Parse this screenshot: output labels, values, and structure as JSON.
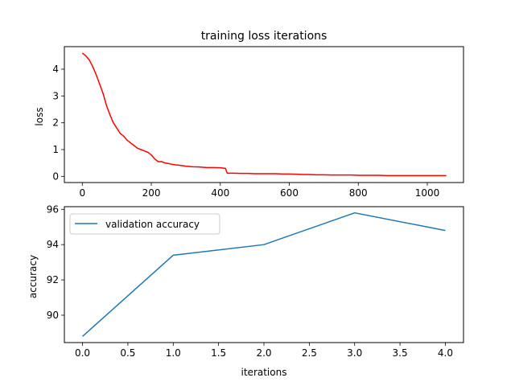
{
  "chart_data": [
    {
      "type": "line",
      "title": "training loss iterations",
      "xlabel": "",
      "ylabel": "loss",
      "xlim": [
        -52,
        1105
      ],
      "ylim": [
        -0.23,
        4.84
      ],
      "xticks": [
        0,
        200,
        400,
        600,
        800,
        1000
      ],
      "xtick_labels": [
        "0",
        "200",
        "400",
        "600",
        "800",
        "1000"
      ],
      "yticks": [
        0,
        1,
        2,
        3,
        4
      ],
      "ytick_labels": [
        "0",
        "1",
        "2",
        "3",
        "4"
      ],
      "grid": false,
      "series": [
        {
          "color": "#ff0000",
          "x": [
            0,
            10,
            20,
            30,
            40,
            50,
            60,
            70,
            80,
            90,
            100,
            110,
            120,
            130,
            140,
            150,
            160,
            170,
            180,
            190,
            200,
            210,
            220,
            230,
            240,
            250,
            260,
            270,
            280,
            290,
            300,
            320,
            340,
            360,
            380,
            400,
            415,
            420,
            440,
            460,
            480,
            500,
            520,
            540,
            560,
            580,
            600,
            620,
            640,
            660,
            680,
            700,
            720,
            740,
            760,
            780,
            800,
            820,
            840,
            860,
            880,
            900,
            920,
            940,
            960,
            980,
            1000,
            1020,
            1040,
            1055
          ],
          "y": [
            4.6,
            4.5,
            4.35,
            4.1,
            3.8,
            3.45,
            3.1,
            2.65,
            2.3,
            2.0,
            1.8,
            1.6,
            1.5,
            1.35,
            1.25,
            1.15,
            1.05,
            1.0,
            0.95,
            0.9,
            0.8,
            0.65,
            0.55,
            0.55,
            0.5,
            0.48,
            0.45,
            0.43,
            0.42,
            0.4,
            0.38,
            0.36,
            0.35,
            0.33,
            0.33,
            0.32,
            0.3,
            0.12,
            0.12,
            0.11,
            0.11,
            0.1,
            0.1,
            0.1,
            0.1,
            0.09,
            0.09,
            0.08,
            0.07,
            0.07,
            0.06,
            0.06,
            0.05,
            0.05,
            0.05,
            0.05,
            0.04,
            0.04,
            0.04,
            0.04,
            0.03,
            0.03,
            0.03,
            0.03,
            0.03,
            0.03,
            0.03,
            0.03,
            0.03,
            0.03
          ]
        }
      ]
    },
    {
      "type": "line",
      "title": "",
      "xlabel": "iterations",
      "ylabel": "accuracy",
      "xlim": [
        -0.2,
        4.2
      ],
      "ylim": [
        88.45,
        96.15
      ],
      "xticks": [
        0,
        0.5,
        1,
        1.5,
        2,
        2.5,
        3,
        3.5,
        4
      ],
      "xtick_labels": [
        "0.0",
        "0.5",
        "1.0",
        "1.5",
        "2.0",
        "2.5",
        "3.0",
        "3.5",
        "4.0"
      ],
      "yticks": [
        90,
        92,
        94,
        96
      ],
      "ytick_labels": [
        "90",
        "92",
        "94",
        "96"
      ],
      "grid": false,
      "legend": "top-left",
      "series": [
        {
          "name": "validation accuracy",
          "color": "#1f77b4",
          "x": [
            0,
            1,
            2,
            3,
            4
          ],
          "y": [
            88.8,
            93.4,
            94.0,
            95.8,
            94.8
          ]
        }
      ]
    }
  ]
}
